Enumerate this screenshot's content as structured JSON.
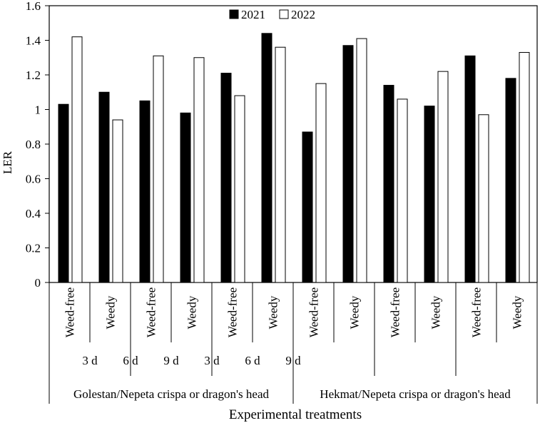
{
  "chart_data": {
    "type": "bar",
    "ylabel": "LER",
    "xlabel": "Experimental treatments",
    "ylim": [
      0,
      1.6
    ],
    "yticks": [
      "0",
      "0.2",
      "0.4",
      "0.6",
      "0.8",
      "1",
      "1.2",
      "1.4",
      "1.6"
    ],
    "grid": false,
    "legend_position": "top-center",
    "series": [
      {
        "name": "2021",
        "color": "#000000",
        "values": [
          1.03,
          1.1,
          1.05,
          0.98,
          1.21,
          1.44,
          0.87,
          1.37,
          1.14,
          1.02,
          1.31,
          1.18
        ]
      },
      {
        "name": "2022",
        "color": "#ffffff",
        "values": [
          1.42,
          0.94,
          1.31,
          1.3,
          1.08,
          1.36,
          1.15,
          1.41,
          1.06,
          1.22,
          0.97,
          1.33
        ]
      }
    ],
    "categories": [
      "Weed-free",
      "Weedy",
      "Weed-free",
      "Weedy",
      "Weed-free",
      "Weedy",
      "Weed-free",
      "Weedy",
      "Weed-free",
      "Weedy",
      "Weed-free",
      "Weedy"
    ],
    "group_level2": [
      "3 d",
      "6 d",
      "9 d",
      "3 d",
      "6 d",
      "9 d"
    ],
    "group_level1": [
      "Golestan/Nepeta crispa or dragon's head",
      "Hekmat/Nepeta crispa or dragon's head"
    ]
  }
}
